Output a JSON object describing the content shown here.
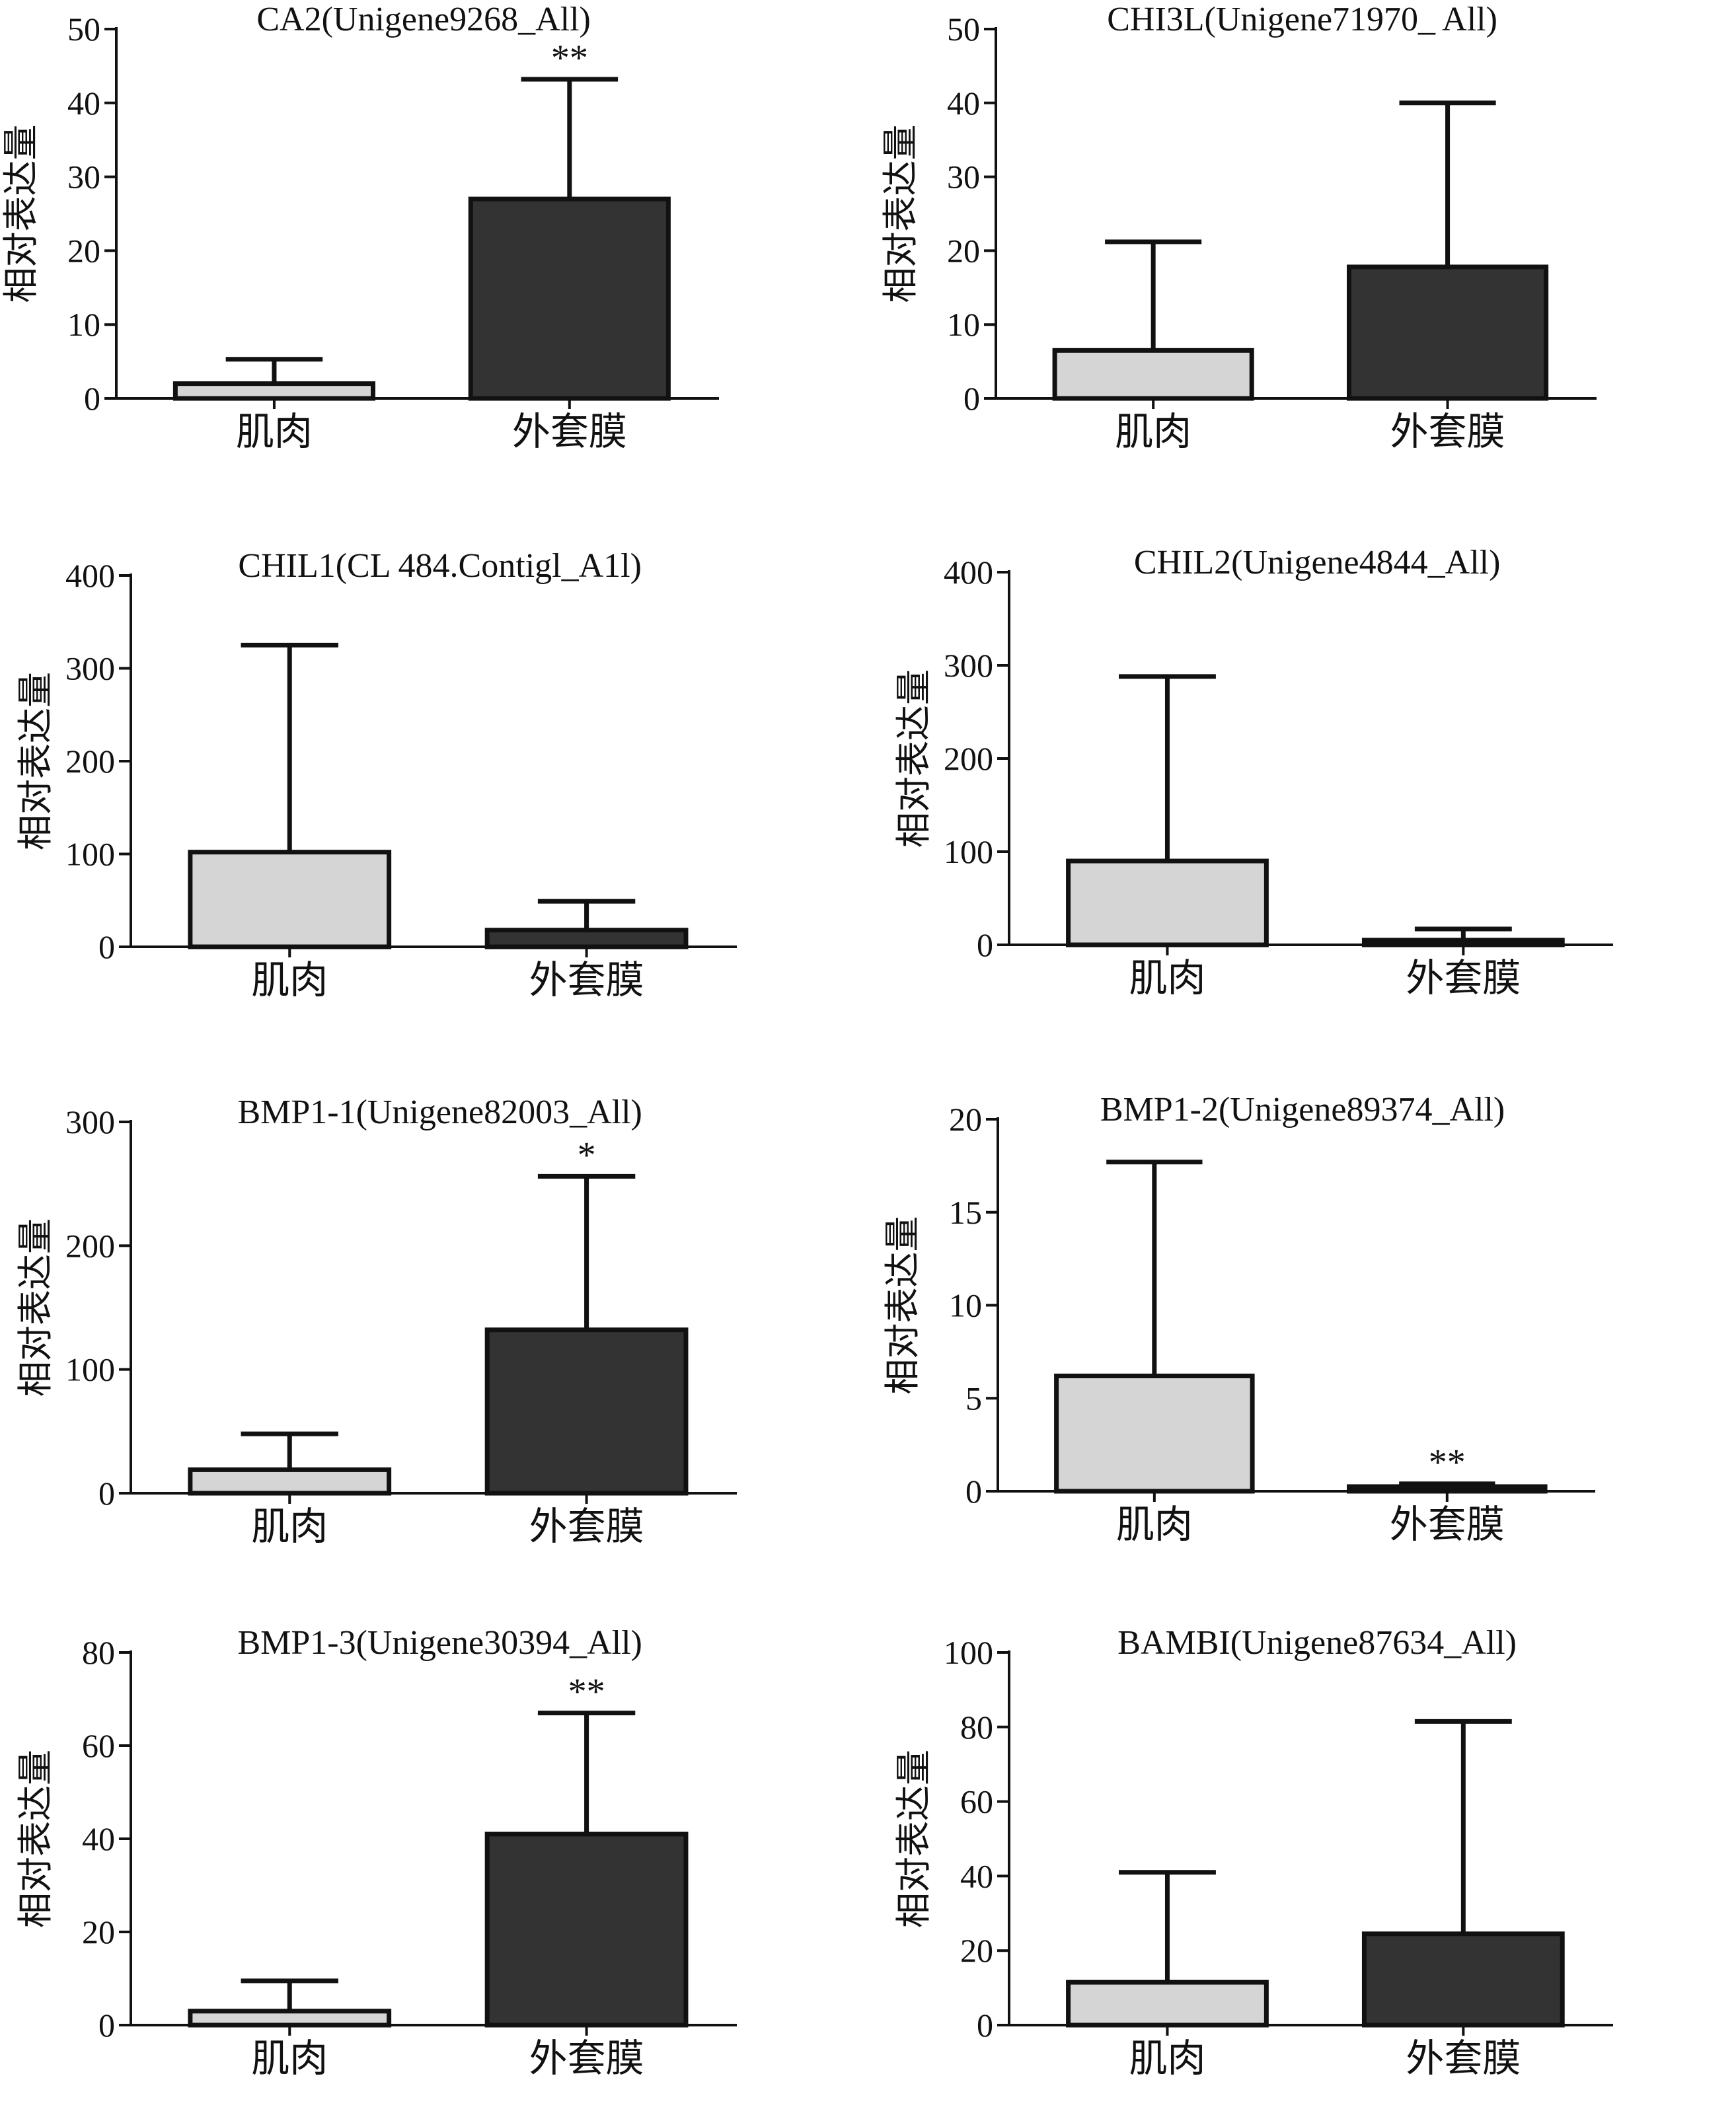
{
  "colors": {
    "muscle_bar": "#d4d5d4",
    "mantle_bar": "#333333",
    "ink": "#111111"
  },
  "chart_data": [
    {
      "type": "bar",
      "title": "CA2(Unigene9268_All)",
      "ylabel": "相对表达量",
      "categories": [
        "肌肉",
        "外套膜"
      ],
      "values": [
        2,
        27
      ],
      "errors": [
        3.3,
        16.2
      ],
      "significance": [
        "",
        "**"
      ],
      "ylim": [
        0,
        50
      ],
      "yticks": [
        0,
        10,
        20,
        30,
        40,
        50
      ],
      "grid": false
    },
    {
      "type": "bar",
      "title": "CHI3L(Unigene71970_ All)",
      "ylabel": "相对表达量",
      "categories": [
        "肌肉",
        "外套膜"
      ],
      "values": [
        6.5,
        17.8
      ],
      "errors": [
        14.7,
        22.2
      ],
      "significance": [
        "",
        ""
      ],
      "ylim": [
        0,
        50
      ],
      "yticks": [
        0,
        10,
        20,
        30,
        40,
        50
      ],
      "grid": false
    },
    {
      "type": "bar",
      "title": "CHIL1(CL 484.Contigl_A1l)",
      "ylabel": "相对表达量",
      "categories": [
        "肌肉",
        "外套膜"
      ],
      "values": [
        102,
        18
      ],
      "errors": [
        223,
        31
      ],
      "significance": [
        "",
        ""
      ],
      "ylim": [
        0,
        400
      ],
      "yticks": [
        0,
        100,
        200,
        300,
        400
      ],
      "grid": false
    },
    {
      "type": "bar",
      "title": "CHIL2(Unigene4844_All)",
      "ylabel": "相对表达量",
      "categories": [
        "肌肉",
        "外套膜"
      ],
      "values": [
        90,
        5
      ],
      "errors": [
        198,
        12
      ],
      "significance": [
        "",
        ""
      ],
      "ylim": [
        0,
        400
      ],
      "yticks": [
        0,
        100,
        200,
        300,
        400
      ],
      "grid": false
    },
    {
      "type": "bar",
      "title": "BMP1-1(Unigene82003_All)",
      "ylabel": "相对表达量",
      "categories": [
        "肌肉",
        "外套膜"
      ],
      "values": [
        19,
        132
      ],
      "errors": [
        29,
        124
      ],
      "significance": [
        "",
        "*"
      ],
      "ylim": [
        0,
        300
      ],
      "yticks": [
        0,
        100,
        200,
        300
      ],
      "grid": false
    },
    {
      "type": "bar",
      "title": "BMP1-2(Unigene89374_All)",
      "ylabel": "相对表达量",
      "categories": [
        "肌肉",
        "外套膜"
      ],
      "values": [
        6.2,
        0.25
      ],
      "errors": [
        11.5,
        0.15
      ],
      "significance": [
        "",
        "**"
      ],
      "ylim": [
        0,
        20
      ],
      "yticks": [
        0,
        5,
        10,
        15,
        20
      ],
      "grid": false
    },
    {
      "type": "bar",
      "title": "BMP1-3(Unigene30394_All)",
      "ylabel": "相对表达量",
      "categories": [
        "肌肉",
        "外套膜"
      ],
      "values": [
        3,
        41
      ],
      "errors": [
        6.5,
        26
      ],
      "significance": [
        "",
        "**"
      ],
      "ylim": [
        0,
        80
      ],
      "yticks": [
        0,
        20,
        40,
        60,
        80
      ],
      "grid": false
    },
    {
      "type": "bar",
      "title": "BAMBI(Unigene87634_All)",
      "ylabel": "相对表达量",
      "categories": [
        "肌肉",
        "外套膜"
      ],
      "values": [
        11.5,
        24.5
      ],
      "errors": [
        29.5,
        57
      ],
      "significance": [
        "",
        ""
      ],
      "ylim": [
        0,
        100
      ],
      "yticks": [
        0,
        20,
        40,
        60,
        80,
        100
      ],
      "grid": false
    }
  ]
}
